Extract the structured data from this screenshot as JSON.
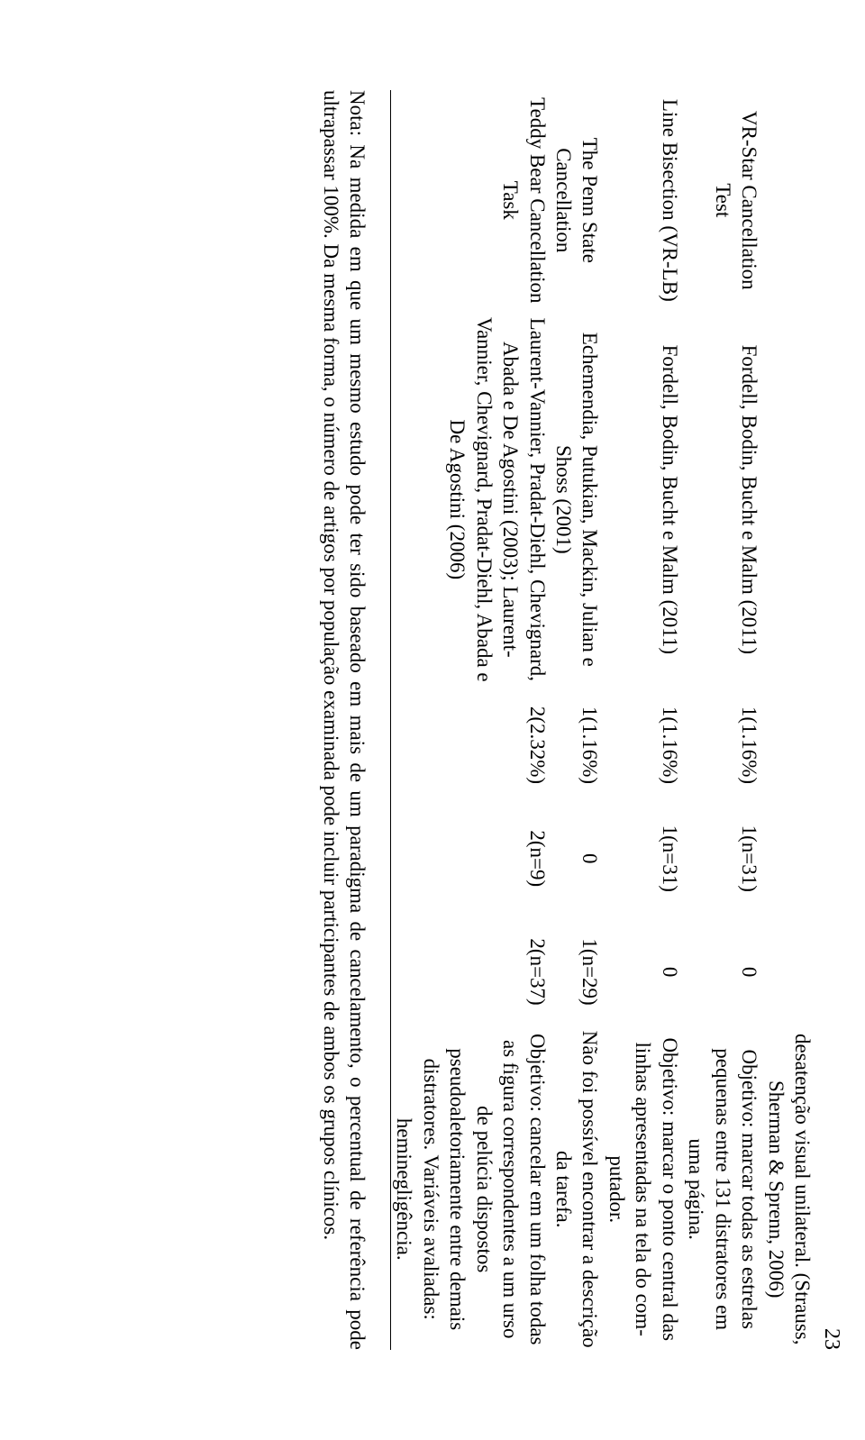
{
  "page_number": "23",
  "rows": [
    {
      "name": "",
      "ref": "",
      "pct": "",
      "g1": "",
      "g2": "",
      "desc": "desatenção visual unilate­ral. (Strauss, Sherman & Sprenn, 2006)"
    },
    {
      "name": "VR-Star Cancella­tion Test",
      "ref": "Fordell, Bodin, Bucht e Malm (2011)",
      "pct": "1(1.16%)",
      "g1": "1(n=31)",
      "g2": "0",
      "desc": "Objetivo: marcar todas as estrelas pequenas entre 131 distratores em uma página."
    },
    {
      "name": "Line Bisection (VR-­LB)",
      "ref": "Fordell, Bodin, Bucht e Malm (2011)",
      "pct": "1(1.16%)",
      "g1": "1(n=31)",
      "g2": "0",
      "desc": "Objetivo: marcar o ponto central das linhas apre­sentadas na tela do com­putador."
    },
    {
      "name": "The Penn State Cancellation",
      "ref": "Echemendia, Putukian, Mackin, Julian e Shoss (2001)",
      "pct": "1(1.16%)",
      "g1": "0",
      "g2": "1(n=29)",
      "desc": "Não foi possível encon­trar a descrição da tarefa."
    },
    {
      "name": "Teddy Bear Cancel­lation Task",
      "ref": "Laurent-Vannier, Pradat-Diehl, Che­vignard, Abada e De Agostini (2003); Laurent-Vannier, Chevi­gnard, Pradat-Diehl, Abada e De Agostini (2006)",
      "pct": "2(2.32%)",
      "g1": "2(n=9)",
      "g2": "2(n=37)",
      "desc": "Objetivo: cancelar em um folha todas as figura correspondentes a um urso de pelúcia dispostos pseudoaletoriamente entre demais distratores. Variáveis avaliadas: heminegligência."
    }
  ],
  "note": "Nota: Na medida em que um mesmo estudo pode ter sido baseado em mais de um paradigma de cancelamento, o percentual de referência pode ultrapassar 100%. Da mesma forma, o número de artigos por população examinada pode incluir participantes de ambos os grupos clínicos."
}
